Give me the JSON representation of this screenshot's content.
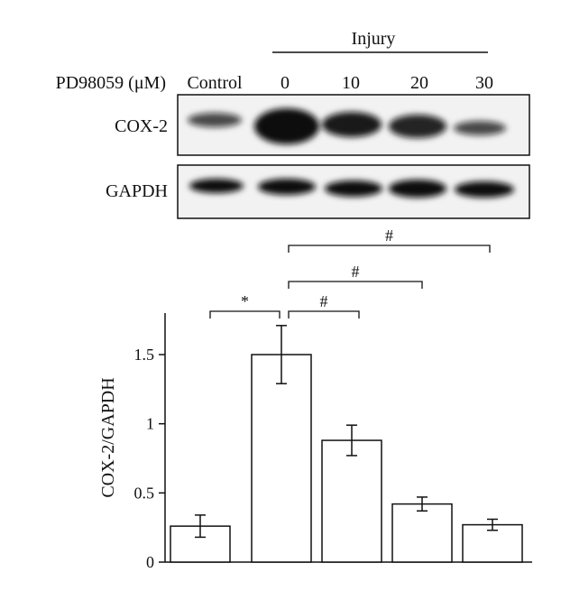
{
  "blot": {
    "group_label": "Injury",
    "treatment_label": "PD98059 (μM)",
    "lanes": [
      "Control",
      "0",
      "10",
      "20",
      "30"
    ],
    "rows": [
      "COX-2",
      "GAPDH"
    ]
  },
  "chart_data": {
    "type": "bar",
    "y_label": "COX-2/GAPDH",
    "categories": [
      null,
      null,
      null,
      null,
      null
    ],
    "values": [
      0.26,
      1.5,
      0.88,
      0.42,
      0.27
    ],
    "errors": [
      0.08,
      0.21,
      0.11,
      0.05,
      0.04
    ],
    "color": "#ffffff",
    "ylim": [
      0,
      1.8
    ],
    "yticks": [
      0,
      0.5,
      1,
      1.5
    ],
    "annotations": [
      "*",
      "#",
      "#",
      "#"
    ]
  }
}
